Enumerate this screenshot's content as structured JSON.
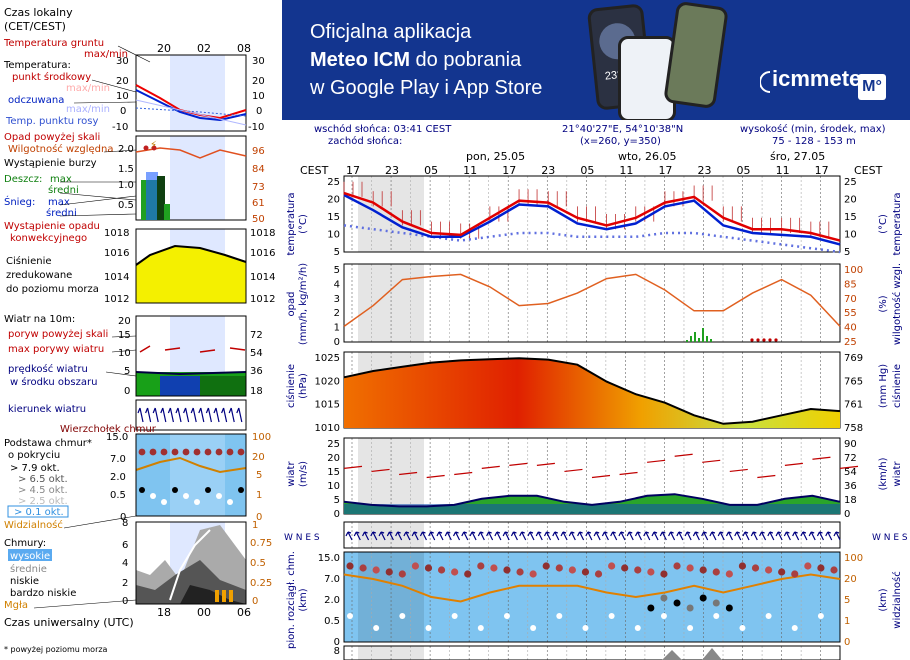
{
  "banner": {
    "line1": "Oficjalna aplikacja",
    "line2_bold": "Meteo ICM",
    "line2_rest": " do pobrania",
    "line3": "w Google Play i App Store",
    "logo_text": "icmmeteo",
    "logo_badge": "M°",
    "phone_temp": "23°"
  },
  "header": {
    "sunrise": "wschód słońca: 03:41 CEST",
    "sunset": "zachód słońca:",
    "coords": "21°40'27\"E, 54°10'38\"N",
    "grid": "(x=260,  y=350)",
    "elev_label": "wysokość (min, środek, max)",
    "elev_values": "75 - 128 - 153 m"
  },
  "time": {
    "tz": "CEST",
    "days": [
      "pon, 25.05",
      "wto, 26.05",
      "śro, 27.05"
    ],
    "hour_labels": [
      "17",
      "23",
      "05",
      "11",
      "17",
      "23",
      "05",
      "11",
      "17",
      "23",
      "05",
      "11",
      "17"
    ]
  },
  "legend": {
    "tz_title_1": "Czas lokalny",
    "tz_title_2": "(CET/CEST)",
    "local_hours": [
      "20",
      "02",
      "08"
    ],
    "utc_hours": [
      "18",
      "00",
      "06"
    ],
    "utc_title": "Czas uniwersalny (UTC)",
    "footnote": "* powyżej poziomu morza",
    "temp": {
      "soil": "Temperatura gruntu",
      "soil2": "max/min",
      "title": "Temperatura:",
      "mid": "punkt środkowy",
      "maxmin": "max/min",
      "feel": "odczuwana",
      "maxmin2": "max/min",
      "dew": "Temp. punktu rosy",
      "ticks": [
        "30",
        "20",
        "10",
        "0",
        "-10"
      ]
    },
    "precip": {
      "over": "Opad powyżej skali",
      "rh": "Wilgotność względna",
      "storm": "Wystąpienie burzy",
      "rain": "Deszcz:",
      "rain_max": "max",
      "rain_mean": "średni",
      "snow": "Śnieg:",
      "snow_max": "max",
      "snow_mean": "średni",
      "convective": "Wystąpienie opadu",
      "convective2": "konwekcyjnego",
      "ticks_l": [
        "2.0",
        "1.5",
        "1.0",
        "0.5"
      ],
      "ticks_r": [
        "96",
        "84",
        "73",
        "61",
        "50"
      ]
    },
    "pressure": {
      "l1": "Ciśnienie",
      "l2": "zredukowane",
      "l3": "do poziomu morza",
      "ticks": [
        "1018",
        "1016",
        "1014",
        "1012"
      ]
    },
    "wind": {
      "title": "Wiatr na 10m:",
      "gust_over": "poryw powyżej skali",
      "gust": "max porywy wiatru",
      "speed": "prędkość wiatru",
      "speed2": "w środku obszaru",
      "ticks_l": [
        "20",
        "15",
        "10",
        "5",
        "0"
      ],
      "ticks_r": [
        "72",
        "54",
        "36",
        "18",
        "0"
      ]
    },
    "dir": {
      "title": "kierunek wiatru"
    },
    "cloudbase": {
      "top": "Wierzchołek chmur",
      "base": "Podstawa chmur*",
      "cover": "o pokryciu",
      "o1": "> 7.9 okt.",
      "o2": "> 6.5 okt.",
      "o3": "> 4.5 okt.",
      "o4": "> 2.5 okt.",
      "o5": "> 0.1 okt.",
      "vis": "Widzialność",
      "ticks_l": [
        "15.0",
        "7.0",
        "2.0",
        "0.5",
        "0"
      ],
      "ticks_r": [
        "100",
        "20",
        "5",
        "1",
        "0"
      ]
    },
    "clouds": {
      "title": "Chmury:",
      "high": "wysokie",
      "mid": "średnie",
      "low": "niskie",
      "vlow": "bardzo niskie",
      "fog": "Mgła",
      "ticks_l": [
        "8",
        "6",
        "4",
        "2",
        "0"
      ],
      "ticks_r": [
        "1",
        "0.75",
        "0.5",
        "0.25",
        "0"
      ]
    }
  },
  "panels": {
    "temp": {
      "axis_l": "temperatura",
      "unit_l": "(°C)",
      "axis_r": "temperatura",
      "unit_r": "(°C)",
      "ticks": [
        "25",
        "20",
        "15",
        "10",
        "5"
      ]
    },
    "precip": {
      "axis_l": "opad",
      "unit_l": "(mm/h, kg/m²/h)",
      "axis_r": "wilgotność wzgl.",
      "unit_r": "(%)",
      "ticks_l": [
        "5",
        "4",
        "3",
        "2",
        "1",
        "0"
      ],
      "ticks_r": [
        "100",
        "85",
        "70",
        "55",
        "40",
        "25"
      ]
    },
    "pressure": {
      "axis_l": "ciśnienie",
      "unit_l": "(hPa)",
      "axis_r": "ciśnienie",
      "unit_r": "(mm Hg)",
      "ticks_l": [
        "1025",
        "1020",
        "1015",
        "1010"
      ],
      "ticks_r": [
        "769",
        "765",
        "761",
        "758"
      ]
    },
    "wind": {
      "axis_l": "wiatr",
      "unit_l": "(m/s)",
      "axis_r": "wiatr",
      "unit_r": "(km/h)",
      "ticks_l": [
        "25",
        "20",
        "15",
        "10",
        "5",
        "0"
      ],
      "ticks_r": [
        "90",
        "72",
        "54",
        "36",
        "18",
        "0"
      ]
    },
    "dir": {
      "label_l": "W N E S",
      "label_r": "W N E S"
    },
    "cloud": {
      "axis_l": "pion. rozciągł. chm.",
      "unit_l": "(km)",
      "axis_r": "widzialność",
      "unit_r": "(km)",
      "ticks_l": [
        "15.0",
        "7.0",
        "2.0",
        "0.5",
        "0"
      ],
      "ticks_r": [
        "100",
        "20",
        "5",
        "1",
        "0"
      ]
    },
    "cover": {
      "ticks_l": [
        "8"
      ]
    }
  },
  "chart_data": {
    "type": "line",
    "title": "",
    "x_hours_cest": [
      "17",
      "23",
      "05",
      "11",
      "17",
      "23",
      "05",
      "11",
      "17",
      "23",
      "05",
      "11",
      "17"
    ],
    "series": [
      {
        "name": "temperatura",
        "values": [
          20.5,
          18,
          13,
          10,
          9.5,
          14,
          18.5,
          18,
          14,
          12,
          14,
          18,
          19.5,
          14,
          11,
          11,
          10,
          8
        ]
      },
      {
        "name": "odczuwana",
        "values": [
          20,
          16,
          11.5,
          9,
          9,
          13,
          17.5,
          17,
          12.5,
          11,
          12.5,
          17,
          18.5,
          12,
          10,
          9.5,
          9,
          7
        ]
      },
      {
        "name": "punkt rosy",
        "values": [
          12,
          11,
          10,
          9,
          8,
          9,
          10,
          10,
          9,
          9,
          9,
          10,
          10,
          9,
          8,
          7,
          6,
          5
        ]
      },
      {
        "name": "wilgotność wzgl.",
        "values": [
          40,
          60,
          85,
          88,
          90,
          78,
          60,
          62,
          72,
          86,
          90,
          75,
          55,
          55,
          72,
          85,
          70,
          40
        ]
      },
      {
        "name": "ciśnienie",
        "values": [
          1022,
          1023.5,
          1024.5,
          1025.5,
          1026,
          1026.3,
          1026.5,
          1026.2,
          1025,
          1021,
          1018,
          1016,
          1013,
          1011,
          1011.5,
          1013,
          1014.5,
          1014
        ]
      },
      {
        "name": "prędkość wiatru",
        "values": [
          4,
          3,
          2.5,
          2.5,
          3,
          5,
          6,
          6,
          4,
          3,
          4,
          6,
          6.5,
          5,
          3,
          3,
          5,
          6,
          4
        ]
      },
      {
        "name": "porywy wiatru",
        "values": [
          15,
          14,
          13,
          12,
          13,
          15,
          16,
          16,
          14,
          12,
          13,
          17,
          19,
          17,
          14,
          12,
          16,
          18,
          15
        ]
      },
      {
        "name": "widzialność",
        "values": [
          30,
          28,
          25,
          20,
          18,
          22,
          25,
          25,
          25,
          22,
          20,
          22,
          25,
          22,
          25,
          28,
          30,
          28
        ]
      }
    ],
    "ylim_temp": [
      5,
      25
    ],
    "ylim_pressure": [
      1010,
      1028
    ],
    "ylim_wind": [
      0,
      25
    ]
  }
}
